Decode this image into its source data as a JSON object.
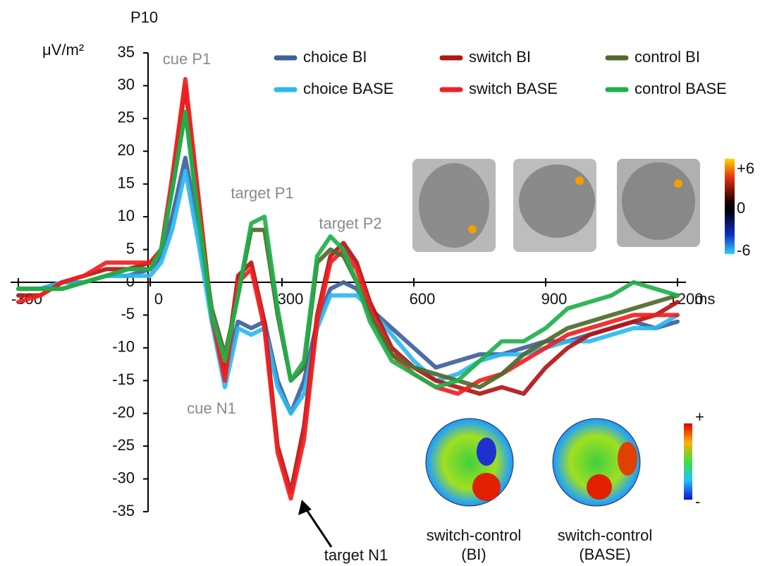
{
  "chart_data": {
    "type": "line",
    "title": "P10",
    "ylabel": "μV/m²",
    "xlabel": "ms",
    "x": [
      -300,
      -250,
      -200,
      -150,
      -100,
      -50,
      0,
      25,
      50,
      80,
      110,
      140,
      170,
      200,
      230,
      260,
      290,
      320,
      350,
      380,
      410,
      440,
      470,
      500,
      550,
      600,
      650,
      700,
      750,
      800,
      850,
      900,
      950,
      1000,
      1050,
      1100,
      1150,
      1200
    ],
    "series": [
      {
        "name": "choice BI",
        "color": "#3f5f9e",
        "values": [
          -1,
          -1,
          0,
          0,
          1,
          1,
          2,
          4,
          10,
          19,
          8,
          -5,
          -14,
          -6,
          -7,
          -6,
          -15,
          -20,
          -15,
          -6,
          -1,
          0,
          -1,
          -4,
          -7,
          -10,
          -13,
          -12,
          -11,
          -11,
          -10,
          -9,
          -9,
          -8,
          -7,
          -6,
          -7,
          -6
        ]
      },
      {
        "name": "choice BASE",
        "color": "#2bb8f0",
        "values": [
          -1,
          -1,
          0,
          0,
          1,
          1,
          1,
          3,
          8,
          17,
          6,
          -6,
          -16,
          -7,
          -8,
          -7,
          -16,
          -20,
          -17,
          -7,
          -2,
          -2,
          -2,
          -4,
          -8,
          -12,
          -15,
          -14,
          -12,
          -11,
          -11,
          -10,
          -9,
          -9,
          -8,
          -7,
          -7,
          -5
        ]
      },
      {
        "name": "switch BI",
        "color": "#b31515",
        "values": [
          -2,
          -2,
          0,
          1,
          2,
          2,
          3,
          5,
          15,
          30,
          12,
          -5,
          -14,
          1,
          3,
          -6,
          -25,
          -32,
          -22,
          -5,
          4,
          6,
          3,
          -3,
          -10,
          -13,
          -15,
          -16,
          -17,
          -16,
          -17,
          -13,
          -10,
          -8,
          -7,
          -6,
          -5,
          -3
        ]
      },
      {
        "name": "switch BASE",
        "color": "#f22020",
        "values": [
          -3,
          -2,
          0,
          1,
          3,
          3,
          3,
          5,
          16,
          31,
          13,
          -5,
          -15,
          0,
          2,
          -7,
          -26,
          -33,
          -24,
          -6,
          3,
          5,
          2,
          -4,
          -11,
          -14,
          -16,
          -17,
          -15,
          -14,
          -12,
          -10,
          -8,
          -7,
          -6,
          -5,
          -5,
          -5
        ]
      },
      {
        "name": "control BI",
        "color": "#4f6a2c",
        "values": [
          -1,
          -1,
          -1,
          0,
          1,
          2,
          2,
          5,
          14,
          26,
          10,
          -4,
          -11,
          -2,
          8,
          8,
          -5,
          -15,
          -13,
          3,
          5,
          4,
          0,
          -5,
          -11,
          -13,
          -14,
          -15,
          -16,
          -14,
          -11,
          -9,
          -7,
          -6,
          -5,
          -4,
          -3,
          -2
        ]
      },
      {
        "name": "control BASE",
        "color": "#1fb04a",
        "values": [
          -1,
          -1,
          -1,
          0,
          1,
          2,
          2,
          5,
          14,
          26,
          10,
          -5,
          -12,
          -2,
          9,
          10,
          -4,
          -15,
          -12,
          4,
          7,
          5,
          0,
          -6,
          -12,
          -14,
          -16,
          -15,
          -12,
          -9,
          -9,
          -7,
          -4,
          -3,
          -2,
          0,
          -1,
          -2
        ]
      }
    ],
    "xlim": [
      -300,
      1200
    ],
    "ylim": [
      -35,
      35
    ],
    "xticks": [
      -300,
      0,
      300,
      600,
      900,
      1200
    ],
    "yticks": [
      -35,
      -30,
      -25,
      -20,
      -15,
      -10,
      -5,
      0,
      5,
      10,
      15,
      20,
      25,
      30,
      35
    ],
    "legend": "top-right",
    "annotations": [
      "cue P1",
      "target P1",
      "target P2",
      "cue N1",
      "target N1"
    ],
    "brain_colorbar": [
      "+6",
      "0",
      "-6"
    ],
    "topo_colorbar": [
      "+",
      "-"
    ],
    "topo_captions": [
      [
        "switch-control",
        "(BI)"
      ],
      [
        "switch-control",
        "(BASE)"
      ]
    ]
  }
}
